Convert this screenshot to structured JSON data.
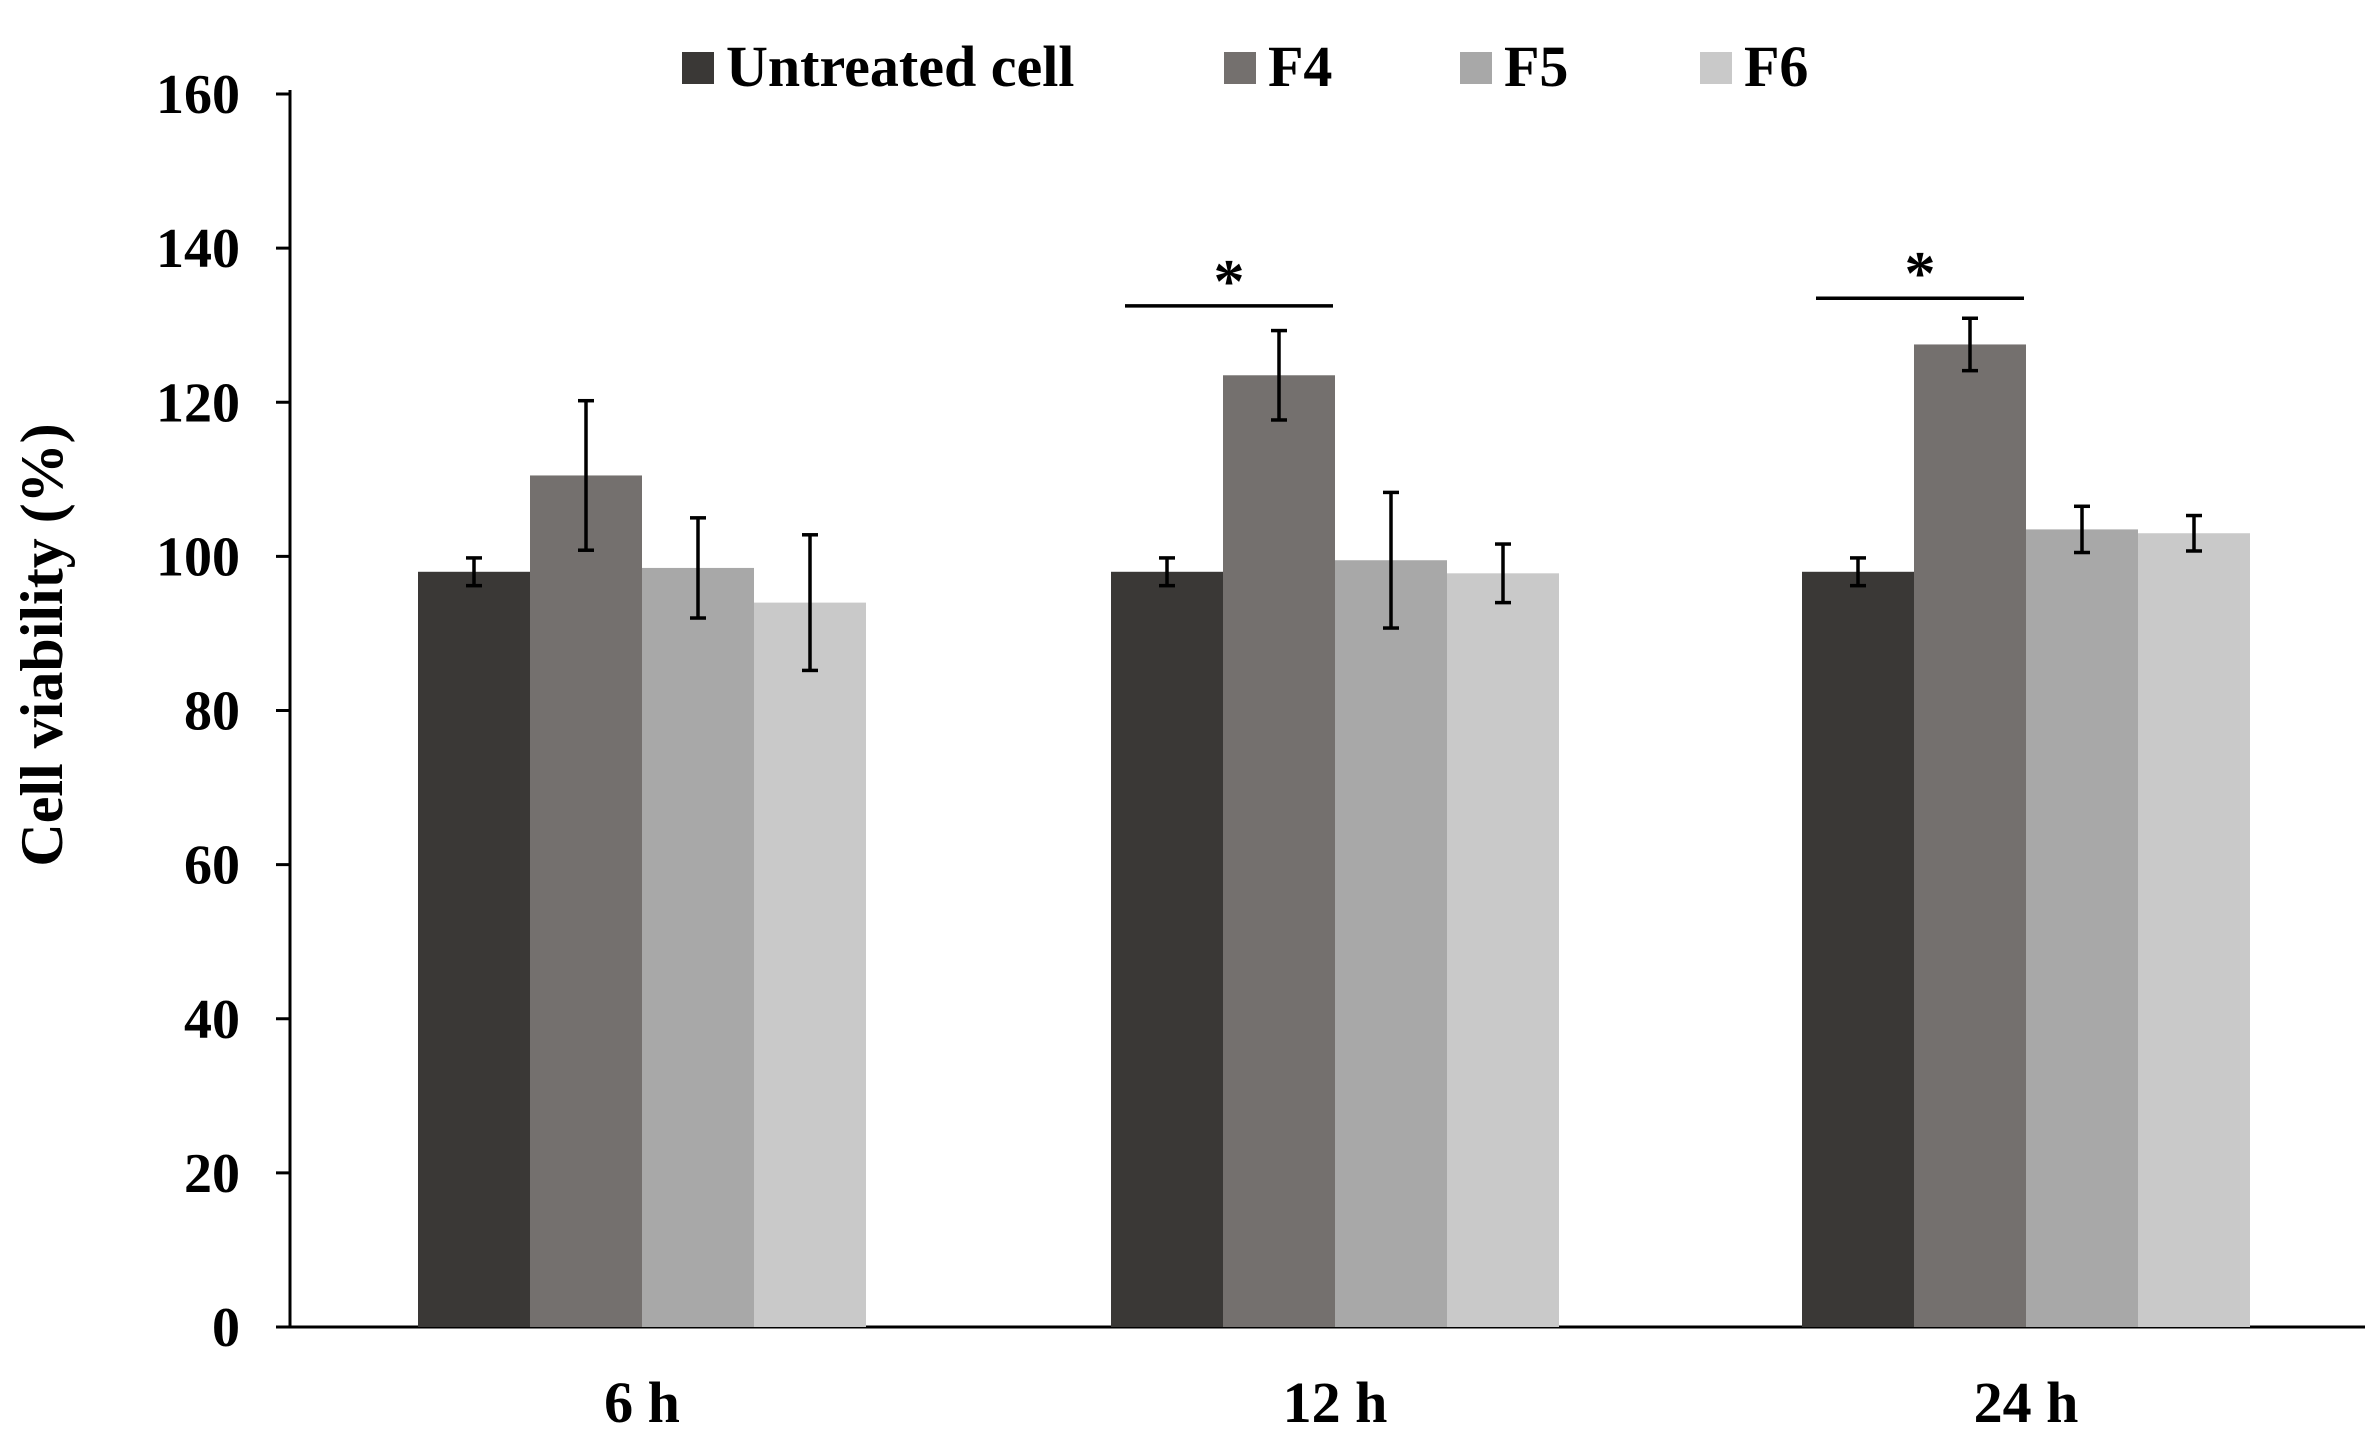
{
  "chart_data": {
    "type": "bar",
    "title": "",
    "xlabel": "",
    "ylabel": "Cell viability (%)",
    "ylim": [
      0,
      160
    ],
    "yticks": [
      0,
      20,
      40,
      60,
      80,
      100,
      120,
      140,
      160
    ],
    "categories": [
      "6 h",
      "12 h",
      "24 h"
    ],
    "legend_position": "top-center",
    "grid": false,
    "series": [
      {
        "name": "Untreated cell",
        "color": "#3a3836",
        "values": [
          98,
          98,
          98
        ],
        "errors": [
          1.8,
          1.8,
          1.8
        ]
      },
      {
        "name": "F4",
        "color": "#74706e",
        "values": [
          110.5,
          123.5,
          127.5
        ],
        "errors": [
          9.7,
          5.8,
          3.4
        ]
      },
      {
        "name": "F5",
        "color": "#a8a8a8",
        "values": [
          98.5,
          99.5,
          103.5
        ],
        "errors": [
          6.5,
          8.8,
          3.0
        ]
      },
      {
        "name": "F6",
        "color": "#c9c9c9",
        "values": [
          94,
          97.8,
          103
        ],
        "errors": [
          8.8,
          3.8,
          2.3
        ]
      }
    ],
    "annotations": [
      {
        "text": "*",
        "category": "12 h",
        "series_from": "Untreated cell",
        "series_to": "F4",
        "y": 132.5
      },
      {
        "text": "*",
        "category": "24 h",
        "series_from": "Untreated cell",
        "series_to": "F4",
        "y": 133.5
      }
    ]
  }
}
